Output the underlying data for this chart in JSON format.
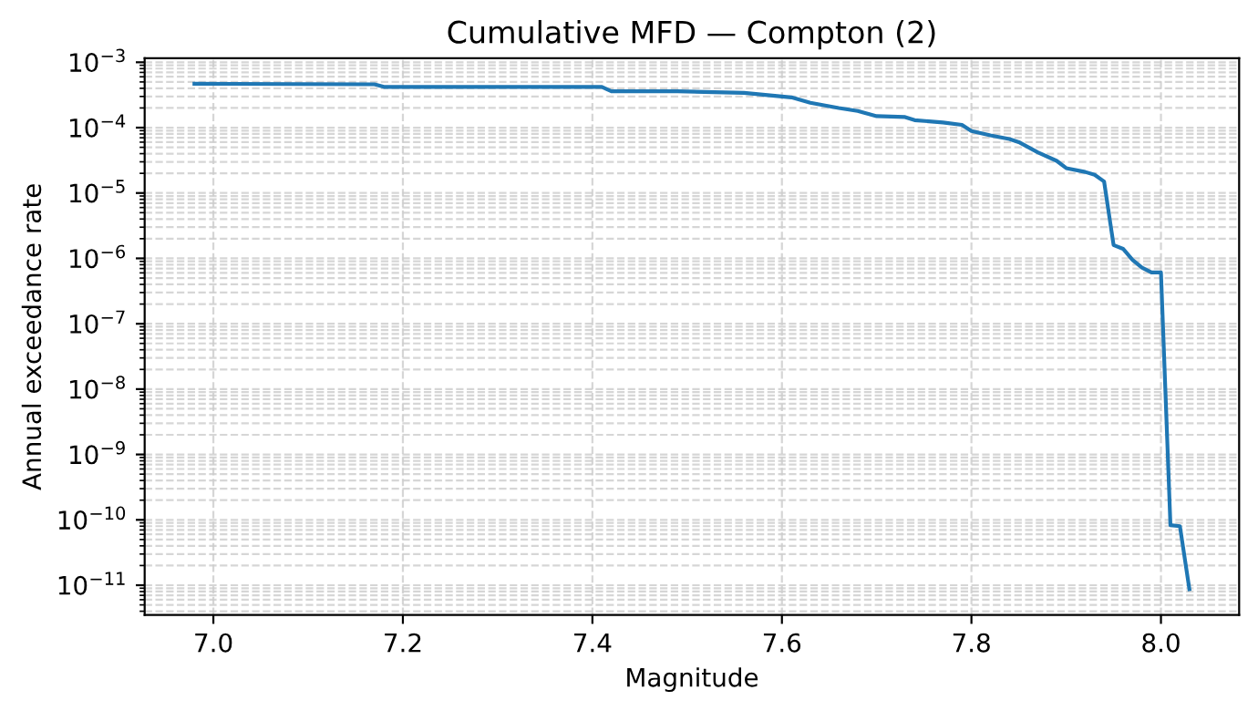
{
  "chart_data": {
    "type": "line",
    "title": "Cumulative MFD — Compton (2)",
    "xlabel": "Magnitude",
    "ylabel": "Annual exceedance rate",
    "x": [
      6.98,
      7.17,
      7.18,
      7.41,
      7.42,
      7.49,
      7.56,
      7.61,
      7.63,
      7.66,
      7.68,
      7.7,
      7.73,
      7.74,
      7.77,
      7.79,
      7.8,
      7.82,
      7.84,
      7.85,
      7.87,
      7.89,
      7.9,
      7.92,
      7.93,
      7.94,
      7.95,
      7.96,
      7.97,
      7.98,
      7.99,
      8.0,
      8.01,
      8.02,
      8.03
    ],
    "series": [
      {
        "color": "#1f77b4",
        "values": [
          0.00047,
          0.00046,
          0.00042,
          0.00042,
          0.00036,
          0.00036,
          0.00034,
          0.00029,
          0.00024,
          0.0002,
          0.00018,
          0.00015,
          0.000145,
          0.00013,
          0.00012,
          0.00011,
          8.9e-05,
          7.6e-05,
          6.7e-05,
          6e-05,
          4.2e-05,
          3.1e-05,
          2.4e-05,
          2.1e-05,
          1.9e-05,
          1.5e-05,
          1.6e-06,
          1.4e-06,
          9.5e-07,
          7.2e-07,
          6.1e-07,
          6.1e-07,
          8.3e-11,
          8e-11,
          8.7e-12
        ]
      }
    ],
    "log": "y",
    "grid": true,
    "xlim": [
      6.9275,
      8.0825
    ],
    "xticks": [
      {
        "value": 7.0,
        "label": "7.0"
      },
      {
        "value": 7.2,
        "label": "7.2"
      },
      {
        "value": 7.4,
        "label": "7.4"
      },
      {
        "value": 7.6,
        "label": "7.6"
      },
      {
        "value": 7.8,
        "label": "7.8"
      },
      {
        "value": 8.0,
        "label": "8.0"
      }
    ],
    "ylim": [
      3.5e-12,
      0.00115
    ],
    "yticks": [
      {
        "value": 1e-11,
        "label": "10$^{−11}$"
      },
      {
        "value": 1e-10,
        "label": "10$^{−10}$"
      },
      {
        "value": 1e-09,
        "label": "10$^{−9}$"
      },
      {
        "value": 1e-08,
        "label": "10$^{−8}$"
      },
      {
        "value": 1e-07,
        "label": "10$^{−7}$"
      },
      {
        "value": 1e-06,
        "label": "10$^{−6}$"
      },
      {
        "value": 1e-05,
        "label": "10$^{−5}$"
      },
      {
        "value": 0.0001,
        "label": "10$^{−4}$"
      },
      {
        "value": 0.001,
        "label": "10$^{−3}$"
      }
    ]
  }
}
